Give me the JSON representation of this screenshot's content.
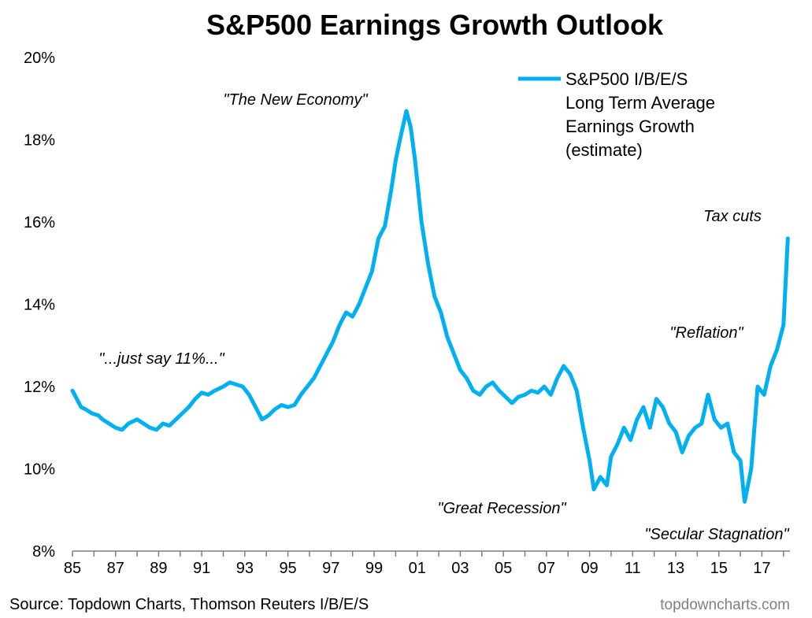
{
  "chart_data": {
    "type": "line",
    "title": "S&P500 Earnings Growth Outlook",
    "xlabel": "",
    "ylabel": "",
    "x_tick_labels": [
      "85",
      "87",
      "89",
      "91",
      "93",
      "95",
      "97",
      "99",
      "01",
      "03",
      "05",
      "07",
      "09",
      "11",
      "13",
      "15",
      "17"
    ],
    "y_tick_labels": [
      "8%",
      "10%",
      "12%",
      "14%",
      "16%",
      "18%",
      "20%"
    ],
    "xlim": [
      1985,
      2018.3
    ],
    "ylim": [
      8,
      20
    ],
    "grid": false,
    "legend": "top-right",
    "series": [
      {
        "name": "S&P500 I/B/E/S Long Term Average Earnings Growth (estimate)",
        "color": "#00b0f0",
        "x": [
          1985.0,
          1985.2,
          1985.4,
          1985.6,
          1985.9,
          1986.2,
          1986.4,
          1986.7,
          1987.0,
          1987.3,
          1987.6,
          1988.0,
          1988.3,
          1988.6,
          1988.9,
          1989.2,
          1989.5,
          1989.8,
          1990.1,
          1990.4,
          1990.7,
          1991.0,
          1991.3,
          1991.6,
          1992.0,
          1992.3,
          1992.6,
          1992.9,
          1993.2,
          1993.5,
          1993.8,
          1994.1,
          1994.4,
          1994.7,
          1995.0,
          1995.3,
          1995.6,
          1995.9,
          1996.2,
          1996.5,
          1996.8,
          1997.1,
          1997.4,
          1997.7,
          1998.0,
          1998.3,
          1998.6,
          1998.9,
          1999.2,
          1999.5,
          1999.8,
          2000.0,
          2000.2,
          2000.5,
          2000.7,
          2000.9,
          2001.2,
          2001.5,
          2001.8,
          2002.1,
          2002.4,
          2002.7,
          2003.0,
          2003.3,
          2003.6,
          2003.9,
          2004.2,
          2004.5,
          2004.8,
          2005.1,
          2005.4,
          2005.7,
          2006.0,
          2006.3,
          2006.6,
          2006.9,
          2007.2,
          2007.5,
          2007.8,
          2008.1,
          2008.4,
          2008.7,
          2009.0,
          2009.2,
          2009.5,
          2009.8,
          2010.0,
          2010.3,
          2010.6,
          2010.9,
          2011.2,
          2011.5,
          2011.8,
          2012.1,
          2012.4,
          2012.7,
          2013.0,
          2013.3,
          2013.6,
          2013.9,
          2014.2,
          2014.5,
          2014.8,
          2015.1,
          2015.4,
          2015.7,
          2016.0,
          2016.2,
          2016.5,
          2016.8,
          2017.1,
          2017.4,
          2017.7,
          2018.0,
          2018.2
        ],
        "y": [
          11.9,
          11.7,
          11.5,
          11.45,
          11.35,
          11.3,
          11.2,
          11.1,
          11.0,
          10.95,
          11.1,
          11.2,
          11.1,
          11.0,
          10.95,
          11.1,
          11.05,
          11.2,
          11.35,
          11.5,
          11.7,
          11.85,
          11.8,
          11.9,
          12.0,
          12.1,
          12.05,
          12.0,
          11.8,
          11.5,
          11.2,
          11.3,
          11.45,
          11.55,
          11.5,
          11.55,
          11.8,
          12.0,
          12.2,
          12.5,
          12.8,
          13.1,
          13.5,
          13.8,
          13.7,
          14.0,
          14.4,
          14.8,
          15.6,
          15.9,
          16.8,
          17.5,
          18.0,
          18.7,
          18.3,
          17.5,
          16.0,
          15.0,
          14.2,
          13.8,
          13.2,
          12.8,
          12.4,
          12.2,
          11.9,
          11.8,
          12.0,
          12.1,
          11.9,
          11.75,
          11.6,
          11.75,
          11.8,
          11.9,
          11.85,
          12.0,
          11.8,
          12.2,
          12.5,
          12.3,
          11.9,
          11.0,
          10.2,
          9.5,
          9.8,
          9.6,
          10.3,
          10.6,
          11.0,
          10.7,
          11.2,
          11.5,
          11.0,
          11.7,
          11.5,
          11.1,
          10.9,
          10.4,
          10.8,
          11.0,
          11.1,
          11.8,
          11.2,
          11.0,
          11.1,
          10.4,
          10.2,
          9.2,
          10.0,
          12.0,
          11.8,
          12.5,
          12.9,
          13.5,
          15.6
        ]
      }
    ],
    "annotations": [
      "\"The New Economy\"",
      "\"...just say 11%...\"",
      "\"Great Recession\"",
      "\"Secular Stagnation\"",
      "\"Reflation\"",
      "Tax cuts"
    ]
  },
  "legend": {
    "lines": [
      "S&P500 I/B/E/S",
      "Long Term Average",
      "Earnings Growth",
      "(estimate)"
    ]
  },
  "footer": {
    "source": "Source: Topdown Charts, Thomson Reuters I/B/E/S",
    "brand": "topdowncharts.com"
  }
}
